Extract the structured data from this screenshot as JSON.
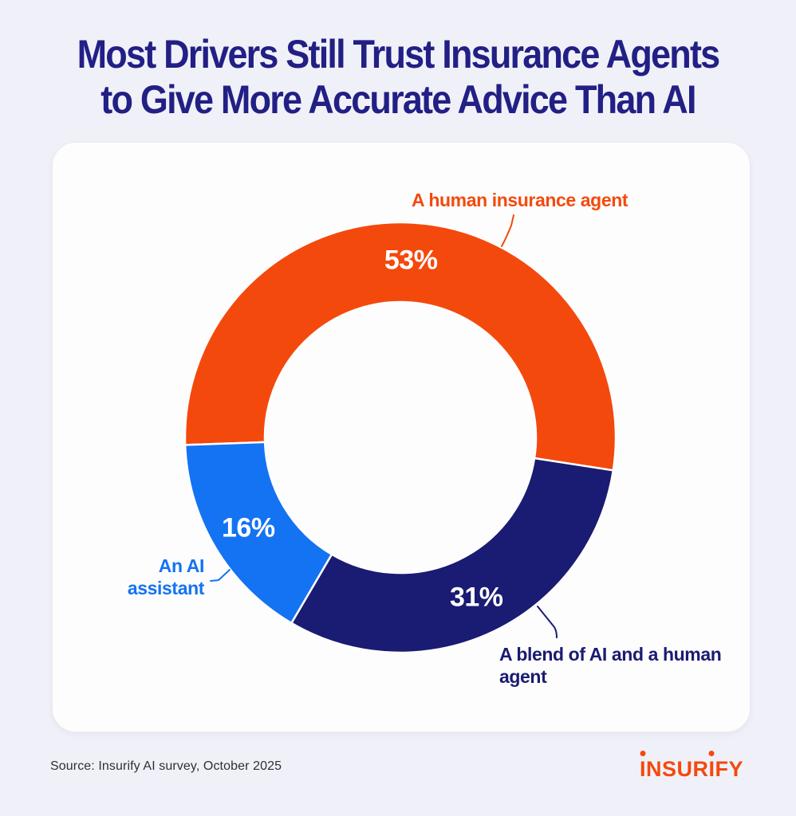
{
  "title": {
    "line1": "Most Drivers Still Trust Insurance Agents",
    "line2": "to Give More Accurate Advice Than AI"
  },
  "chart_data": {
    "type": "pie",
    "variant": "donut",
    "title": "Most Drivers Still Trust Insurance Agents to Give More Accurate Advice Than AI",
    "start_angle_deg": -92,
    "outer_radius": 270,
    "inner_radius": 170,
    "value_label_radius": 222,
    "segments": [
      {
        "label": "A human insurance agent",
        "value": 53,
        "display": "53%",
        "color": "#F4490D"
      },
      {
        "label": "A blend of AI and a human agent",
        "value": 31,
        "display": "31%",
        "color": "#1A1B72"
      },
      {
        "label": "An AI assistant",
        "value": 16,
        "display": "16%",
        "color": "#1473F2"
      }
    ]
  },
  "annotations": {
    "human": "A human insurance agent",
    "ai": "An AI\nassistant",
    "blend": "A blend of AI and a human\nagent"
  },
  "footer": {
    "source": "Source: Insurify AI survey, October 2025",
    "logo_text": "INSURIFY"
  },
  "colors": {
    "orange": "#F4490D",
    "navy": "#1A1B72",
    "blue": "#1473F2",
    "title_text": "#221F85",
    "background": "#F0F1F8",
    "card": "#FDFDFD",
    "value_text": "#FFFFFF"
  }
}
